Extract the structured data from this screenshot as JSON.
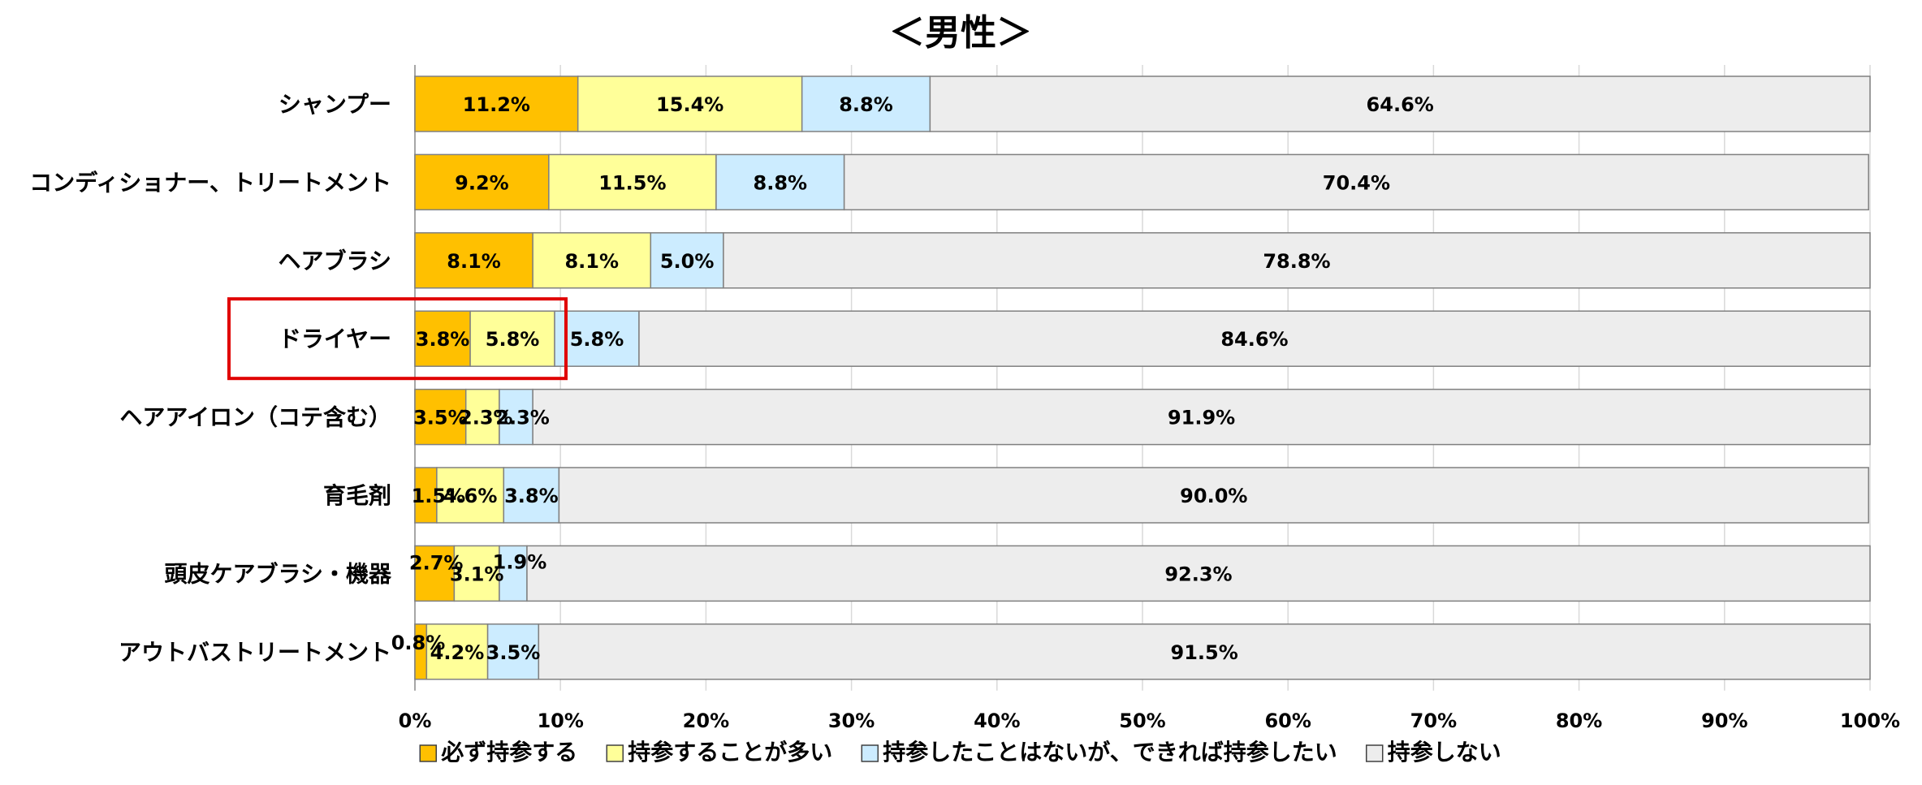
{
  "chart_data": {
    "type": "bar",
    "orientation": "horizontal",
    "stacked": true,
    "title": "＜男性＞",
    "categories": [
      "シャンプー",
      "コンディショナー、トリートメント",
      "ヘアブラシ",
      "ドライヤー",
      "ヘアアイロン（コテ含む）",
      "育毛剤",
      "頭皮ケアブラシ・機器",
      "アウトバストリートメント"
    ],
    "series": [
      {
        "name": "必ず持参する",
        "color": "#FFC000",
        "values": [
          11.2,
          9.2,
          8.1,
          3.8,
          3.5,
          1.5,
          2.7,
          0.8
        ]
      },
      {
        "name": "持参することが多い",
        "color": "#FFFF99",
        "values": [
          15.4,
          11.5,
          8.1,
          5.8,
          2.3,
          4.6,
          3.1,
          4.2
        ]
      },
      {
        "name": "持参したことはないが、できれば持参したい",
        "color": "#CCECFF",
        "values": [
          8.8,
          8.8,
          5.0,
          5.8,
          2.3,
          3.8,
          1.9,
          3.5
        ]
      },
      {
        "name": "持参しない",
        "color": "#EDEDED",
        "values": [
          64.6,
          70.4,
          78.8,
          84.6,
          91.9,
          90.0,
          92.3,
          91.5
        ]
      }
    ],
    "value_labels": [
      [
        "11.2%",
        "15.4%",
        "8.8%",
        "64.6%"
      ],
      [
        "9.2%",
        "11.5%",
        "8.8%",
        "70.4%"
      ],
      [
        "8.1%",
        "8.1%",
        "5.0%",
        "78.8%"
      ],
      [
        "3.8%",
        "5.8%",
        "5.8%",
        "84.6%"
      ],
      [
        "3.5%",
        "2.3%",
        "2.3%",
        "91.9%"
      ],
      [
        "1.5%",
        "4.6%",
        "3.8%",
        "90.0%"
      ],
      [
        "2.7%",
        "3.1%",
        "1.9%",
        "92.3%"
      ],
      [
        "0.8%",
        "4.2%",
        "3.5%",
        "91.5%"
      ]
    ],
    "x_ticks": [
      "0%",
      "10%",
      "20%",
      "30%",
      "40%",
      "50%",
      "60%",
      "70%",
      "80%",
      "90%",
      "100%"
    ],
    "xlim": [
      0,
      100
    ],
    "grid": true,
    "legend_position": "bottom",
    "highlight": {
      "category": "ドライヤー",
      "color": "#E00000"
    }
  }
}
